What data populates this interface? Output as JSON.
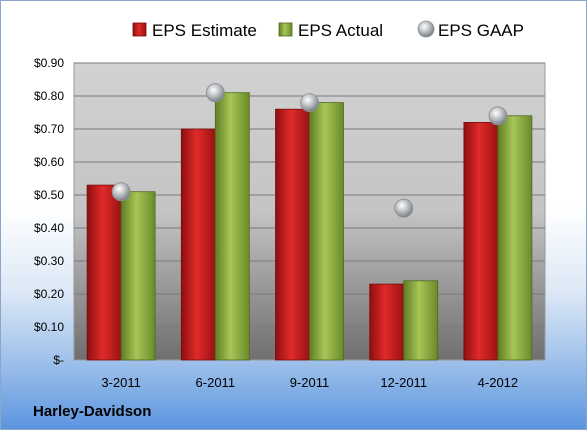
{
  "company": "Harley-Davidson",
  "chart_data": {
    "type": "bar",
    "categories": [
      "3-2011",
      "6-2011",
      "9-2011",
      "12-2011",
      "4-2012"
    ],
    "series": [
      {
        "name": "EPS Estimate",
        "type": "bar",
        "color": "#cc1f1f",
        "values": [
          0.53,
          0.7,
          0.76,
          0.23,
          0.72
        ]
      },
      {
        "name": "EPS Actual",
        "type": "bar",
        "color": "#8fb043",
        "values": [
          0.51,
          0.81,
          0.78,
          0.24,
          0.74
        ]
      },
      {
        "name": "EPS GAAP",
        "type": "scatter",
        "color": "#9aa0a6",
        "values": [
          0.51,
          0.81,
          0.78,
          0.46,
          0.74
        ]
      }
    ],
    "yticks": [
      "$-",
      "$0.10",
      "$0.20",
      "$0.30",
      "$0.40",
      "$0.50",
      "$0.60",
      "$0.70",
      "$0.80",
      "$0.90"
    ],
    "ylim": [
      0,
      0.9
    ],
    "grid": true,
    "legend": "top"
  }
}
